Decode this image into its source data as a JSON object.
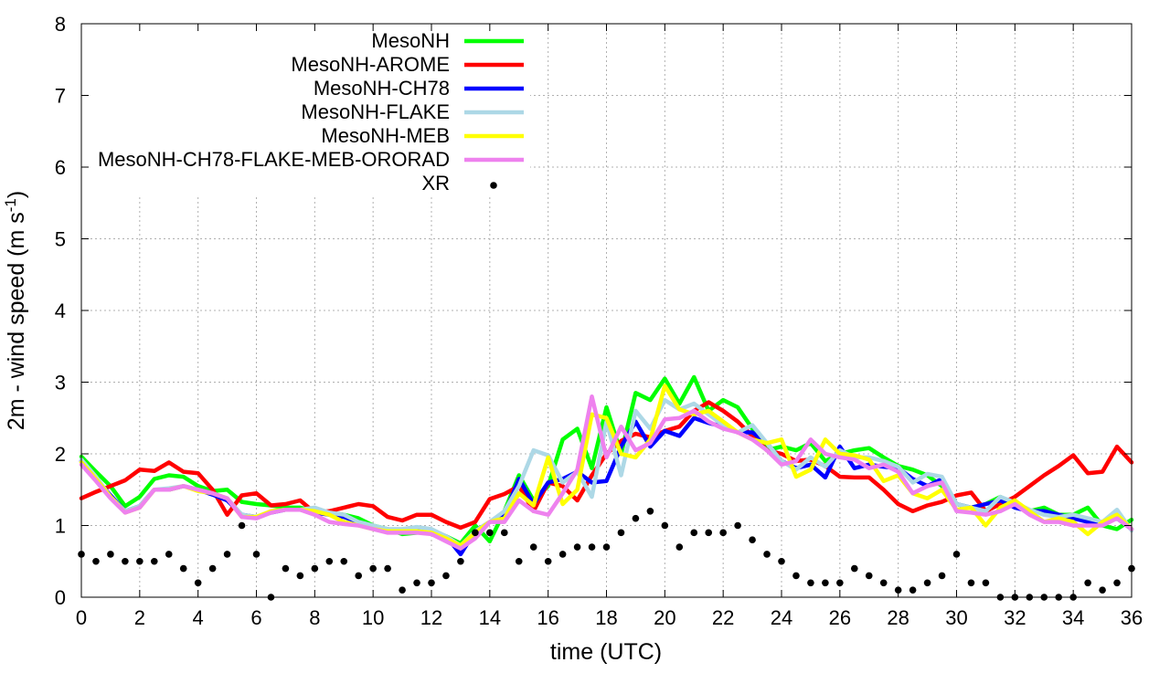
{
  "chart_data": {
    "type": "line",
    "title": "",
    "xlabel": "time (UTC)",
    "ylabel": {
      "main": "2m - wind speed  (m s",
      "sup": "-1",
      "close": ")"
    },
    "xlim": [
      0,
      36
    ],
    "ylim": [
      0,
      8
    ],
    "x_ticks": [
      "0",
      "2",
      "4",
      "6",
      "8",
      "10",
      "12",
      "14",
      "16",
      "18",
      "20",
      "22",
      "24",
      "26",
      "28",
      "30",
      "32",
      "34",
      "36"
    ],
    "y_ticks": [
      "0",
      "1",
      "2",
      "3",
      "4",
      "5",
      "6",
      "7",
      "8"
    ],
    "grid": true,
    "legend_position": "top-left",
    "x": [
      0,
      0.5,
      1,
      1.5,
      2,
      2.5,
      3,
      3.5,
      4,
      4.5,
      5,
      5.5,
      6,
      6.5,
      7,
      7.5,
      8,
      8.5,
      9,
      9.5,
      10,
      10.5,
      11,
      11.5,
      12,
      12.5,
      13,
      13.5,
      14,
      14.5,
      15,
      15.5,
      16,
      16.5,
      17,
      17.5,
      18,
      18.5,
      19,
      19.5,
      20,
      20.5,
      21,
      21.5,
      22,
      22.5,
      23,
      23.5,
      24,
      24.5,
      25,
      25.5,
      26,
      26.5,
      27,
      27.5,
      28,
      28.5,
      29,
      29.5,
      30,
      30.5,
      31,
      31.5,
      32,
      32.5,
      33,
      33.5,
      34,
      34.5,
      35,
      35.5,
      36
    ],
    "series": [
      {
        "name": "MesoNH",
        "color": "#00ff00",
        "values": [
          1.96,
          1.75,
          1.55,
          1.27,
          1.4,
          1.65,
          1.7,
          1.68,
          1.55,
          1.48,
          1.5,
          1.33,
          1.3,
          1.28,
          1.25,
          1.25,
          1.2,
          1.18,
          1.15,
          1.1,
          1.0,
          0.95,
          0.88,
          0.9,
          0.93,
          0.85,
          0.75,
          1.0,
          0.78,
          1.2,
          1.7,
          1.35,
          1.55,
          2.2,
          2.35,
          1.8,
          2.65,
          2.0,
          2.85,
          2.75,
          3.05,
          2.7,
          3.07,
          2.6,
          2.75,
          2.65,
          2.35,
          2.05,
          2.1,
          2.05,
          2.15,
          1.9,
          2.0,
          2.05,
          2.08,
          1.95,
          1.83,
          1.78,
          1.7,
          1.55,
          1.3,
          1.25,
          1.3,
          1.4,
          1.3,
          1.2,
          1.25,
          1.15,
          1.15,
          1.25,
          1.0,
          0.95,
          1.08
        ]
      },
      {
        "name": "MesoNH-AROME",
        "color": "#ff0000",
        "values": [
          1.38,
          1.47,
          1.55,
          1.63,
          1.78,
          1.76,
          1.88,
          1.75,
          1.73,
          1.5,
          1.15,
          1.42,
          1.45,
          1.28,
          1.3,
          1.35,
          1.18,
          1.2,
          1.25,
          1.3,
          1.27,
          1.12,
          1.07,
          1.15,
          1.15,
          1.05,
          0.97,
          1.05,
          1.37,
          1.44,
          1.55,
          1.2,
          1.6,
          1.55,
          1.35,
          1.7,
          2.0,
          2.18,
          2.28,
          2.23,
          2.32,
          2.38,
          2.6,
          2.72,
          2.6,
          2.45,
          2.25,
          2.05,
          2.0,
          1.9,
          1.92,
          1.83,
          1.68,
          1.67,
          1.67,
          1.5,
          1.3,
          1.2,
          1.28,
          1.33,
          1.42,
          1.46,
          1.2,
          1.3,
          1.4,
          1.55,
          1.7,
          1.83,
          1.98,
          1.73,
          1.75,
          2.1,
          1.88
        ]
      },
      {
        "name": "MesoNH-CH78",
        "color": "#0000ff",
        "values": [
          1.9,
          1.65,
          1.42,
          1.2,
          1.27,
          1.5,
          1.5,
          1.55,
          1.5,
          1.43,
          1.35,
          1.15,
          1.12,
          1.18,
          1.22,
          1.22,
          1.18,
          1.15,
          1.12,
          1.05,
          0.97,
          0.93,
          0.92,
          0.95,
          0.93,
          0.85,
          0.6,
          0.92,
          1.05,
          1.15,
          1.65,
          1.3,
          1.6,
          1.65,
          1.75,
          1.6,
          1.62,
          2.1,
          2.45,
          2.1,
          2.32,
          2.25,
          2.5,
          2.43,
          2.38,
          2.3,
          2.3,
          2.15,
          1.9,
          1.8,
          1.85,
          1.67,
          2.1,
          1.8,
          1.85,
          1.82,
          1.8,
          1.65,
          1.55,
          1.65,
          1.3,
          1.25,
          1.3,
          1.35,
          1.25,
          1.2,
          1.2,
          1.15,
          1.1,
          1.05,
          1.05,
          1.1,
          0.95
        ]
      },
      {
        "name": "MesoNH-FLAKE",
        "color": "#add8e6",
        "values": [
          1.92,
          1.68,
          1.4,
          1.2,
          1.27,
          1.5,
          1.52,
          1.55,
          1.5,
          1.45,
          1.38,
          1.15,
          1.12,
          1.2,
          1.22,
          1.22,
          1.25,
          1.18,
          1.15,
          1.05,
          1.0,
          0.95,
          0.95,
          0.98,
          0.95,
          0.85,
          0.72,
          0.92,
          1.05,
          1.2,
          1.55,
          2.05,
          1.98,
          1.6,
          1.75,
          1.4,
          2.45,
          1.7,
          2.6,
          2.35,
          2.75,
          2.62,
          2.7,
          2.55,
          2.4,
          2.3,
          2.4,
          2.15,
          1.9,
          1.78,
          1.95,
          1.82,
          2.05,
          1.95,
          1.95,
          1.9,
          1.82,
          1.6,
          1.72,
          1.68,
          1.3,
          1.25,
          1.2,
          1.4,
          1.32,
          1.22,
          1.15,
          1.12,
          1.15,
          1.1,
          1.05,
          1.22,
          0.93
        ]
      },
      {
        "name": "MesoNH-MEB",
        "color": "#ffff00",
        "values": [
          1.88,
          1.65,
          1.4,
          1.18,
          1.25,
          1.5,
          1.5,
          1.55,
          1.48,
          1.45,
          1.38,
          1.12,
          1.12,
          1.2,
          1.22,
          1.22,
          1.2,
          1.15,
          1.05,
          1.0,
          0.95,
          0.92,
          0.92,
          0.92,
          0.9,
          0.82,
          0.72,
          0.9,
          1.05,
          1.1,
          1.45,
          1.28,
          1.95,
          1.3,
          1.5,
          2.55,
          2.5,
          2.0,
          1.95,
          2.2,
          2.95,
          2.62,
          2.55,
          2.6,
          2.45,
          2.3,
          2.2,
          2.15,
          2.2,
          1.68,
          1.78,
          2.2,
          2.0,
          1.98,
          1.92,
          1.62,
          1.7,
          1.45,
          1.38,
          1.5,
          1.22,
          1.25,
          1.0,
          1.25,
          1.35,
          1.2,
          1.05,
          1.1,
          1.05,
          0.88,
          1.05,
          1.15,
          0.95
        ]
      },
      {
        "name": "MesoNH-CH78-FLAKE-MEB-ORORAD",
        "color": "#ee82ee",
        "values": [
          1.85,
          1.62,
          1.38,
          1.18,
          1.25,
          1.5,
          1.5,
          1.55,
          1.5,
          1.45,
          1.38,
          1.12,
          1.1,
          1.18,
          1.22,
          1.22,
          1.15,
          1.05,
          1.02,
          1.0,
          0.95,
          0.9,
          0.9,
          0.9,
          0.88,
          0.78,
          0.68,
          0.82,
          1.05,
          1.05,
          1.35,
          1.2,
          1.15,
          1.45,
          1.78,
          2.8,
          1.95,
          2.38,
          2.05,
          2.15,
          2.48,
          2.5,
          2.6,
          2.45,
          2.35,
          2.3,
          2.2,
          2.05,
          1.85,
          1.9,
          2.2,
          2.0,
          1.95,
          1.92,
          1.8,
          1.85,
          1.75,
          1.45,
          1.55,
          1.6,
          1.2,
          1.18,
          1.15,
          1.2,
          1.3,
          1.15,
          1.05,
          1.05,
          1.0,
          1.0,
          1.0,
          1.1,
          0.95
        ]
      },
      {
        "name": "XR",
        "color": "#000000",
        "marker": "point",
        "values": [
          0.6,
          0.5,
          0.6,
          0.5,
          0.5,
          0.5,
          0.6,
          0.4,
          0.2,
          0.4,
          0.6,
          1.0,
          0.6,
          0.0,
          0.4,
          0.3,
          0.4,
          0.5,
          0.5,
          0.3,
          0.4,
          0.4,
          0.1,
          0.2,
          0.2,
          0.3,
          0.5,
          0.9,
          0.9,
          0.9,
          0.5,
          0.7,
          0.5,
          0.6,
          0.7,
          0.7,
          0.7,
          0.9,
          1.1,
          1.2,
          1.0,
          0.7,
          0.9,
          0.9,
          0.9,
          1.0,
          0.8,
          0.6,
          0.5,
          0.3,
          0.2,
          0.2,
          0.2,
          0.4,
          0.3,
          0.2,
          0.1,
          0.1,
          0.2,
          0.3,
          0.6,
          0.2,
          0.2,
          0.0,
          0.0,
          0.0,
          0.0,
          0.0,
          0.0,
          0.2,
          0.1,
          0.2,
          0.4
        ]
      }
    ]
  }
}
